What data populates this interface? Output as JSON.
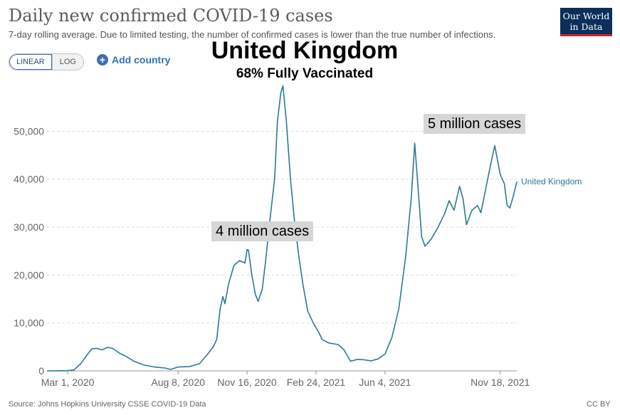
{
  "header": {
    "title": "Daily new confirmed COVID-19 cases",
    "subtitle": "7-day rolling average. Due to limited testing, the number of confirmed cases is lower than the true number of infections.",
    "logo_line1": "Our World",
    "logo_line2": "in Data"
  },
  "controls": {
    "linear_label": "LINEAR",
    "log_label": "LOG",
    "add_country_label": "Add country"
  },
  "overlay": {
    "country": "United Kingdom",
    "vaccinated": "68% Fully Vaccinated",
    "annotation_1": "4 million cases",
    "annotation_2": "5 million cases"
  },
  "footer": {
    "source": "Source: Johns Hopkins University CSSE COVID-19 Data",
    "license": "CC BY"
  },
  "colors": {
    "line": "#2a7a93",
    "grid": "#dddddd",
    "axis_text": "#666666"
  },
  "chart_data": {
    "type": "line",
    "title": "Daily new confirmed COVID-19 cases",
    "xlabel": "",
    "ylabel": "",
    "ylim": [
      0,
      60000
    ],
    "yticks": [
      0,
      10000,
      20000,
      30000,
      40000,
      50000
    ],
    "ytick_labels": [
      "0",
      "10,000",
      "20,000",
      "30,000",
      "40,000",
      "50,000"
    ],
    "xticks": [
      "2020-03-01",
      "2020-08-08",
      "2020-11-16",
      "2021-02-24",
      "2021-06-04",
      "2021-11-18"
    ],
    "xtick_labels": [
      "Mar 1, 2020",
      "Aug 8, 2020",
      "Nov 16, 2020",
      "Feb 24, 2021",
      "Jun 4, 2021",
      "Nov 18, 2021"
    ],
    "grid": "horizontal",
    "series": [
      {
        "name": "United Kingdom",
        "points": [
          [
            "2020-01-31",
            0
          ],
          [
            "2020-02-15",
            10
          ],
          [
            "2020-03-01",
            50
          ],
          [
            "2020-03-10",
            200
          ],
          [
            "2020-03-20",
            1500
          ],
          [
            "2020-03-30",
            3500
          ],
          [
            "2020-04-05",
            4600
          ],
          [
            "2020-04-12",
            4700
          ],
          [
            "2020-04-20",
            4400
          ],
          [
            "2020-04-28",
            4900
          ],
          [
            "2020-05-05",
            4700
          ],
          [
            "2020-05-15",
            3700
          ],
          [
            "2020-05-25",
            3000
          ],
          [
            "2020-06-05",
            2000
          ],
          [
            "2020-06-20",
            1200
          ],
          [
            "2020-07-05",
            800
          ],
          [
            "2020-07-20",
            600
          ],
          [
            "2020-07-28",
            300
          ],
          [
            "2020-08-08",
            800
          ],
          [
            "2020-08-25",
            900
          ],
          [
            "2020-09-08",
            1500
          ],
          [
            "2020-09-20",
            3500
          ],
          [
            "2020-09-28",
            5000
          ],
          [
            "2020-10-03",
            6500
          ],
          [
            "2020-10-08",
            13000
          ],
          [
            "2020-10-12",
            15500
          ],
          [
            "2020-10-15",
            14000
          ],
          [
            "2020-10-20",
            18000
          ],
          [
            "2020-10-28",
            22000
          ],
          [
            "2020-11-05",
            23000
          ],
          [
            "2020-11-13",
            22500
          ],
          [
            "2020-11-16",
            25300
          ],
          [
            "2020-11-18",
            25200
          ],
          [
            "2020-11-23",
            20000
          ],
          [
            "2020-11-28",
            16000
          ],
          [
            "2020-12-02",
            14500
          ],
          [
            "2020-12-08",
            17000
          ],
          [
            "2020-12-13",
            23000
          ],
          [
            "2020-12-18",
            30000
          ],
          [
            "2020-12-22",
            35000
          ],
          [
            "2020-12-26",
            40000
          ],
          [
            "2020-12-30",
            52000
          ],
          [
            "2021-01-04",
            58000
          ],
          [
            "2021-01-07",
            59500
          ],
          [
            "2021-01-12",
            52000
          ],
          [
            "2021-01-18",
            40000
          ],
          [
            "2021-01-24",
            31000
          ],
          [
            "2021-01-30",
            24000
          ],
          [
            "2021-02-05",
            18000
          ],
          [
            "2021-02-12",
            12500
          ],
          [
            "2021-02-20",
            10000
          ],
          [
            "2021-02-28",
            8000
          ],
          [
            "2021-03-05",
            6500
          ],
          [
            "2021-03-15",
            5800
          ],
          [
            "2021-03-28",
            5500
          ],
          [
            "2021-04-05",
            4500
          ],
          [
            "2021-04-12",
            2800
          ],
          [
            "2021-04-15",
            2000
          ],
          [
            "2021-04-25",
            2400
          ],
          [
            "2021-05-05",
            2300
          ],
          [
            "2021-05-15",
            2100
          ],
          [
            "2021-05-25",
            2500
          ],
          [
            "2021-06-04",
            3500
          ],
          [
            "2021-06-14",
            7000
          ],
          [
            "2021-06-24",
            13000
          ],
          [
            "2021-07-04",
            24000
          ],
          [
            "2021-07-12",
            36000
          ],
          [
            "2021-07-17",
            47500
          ],
          [
            "2021-07-22",
            38000
          ],
          [
            "2021-07-27",
            28000
          ],
          [
            "2021-08-01",
            26000
          ],
          [
            "2021-08-10",
            27500
          ],
          [
            "2021-08-20",
            30000
          ],
          [
            "2021-08-30",
            33000
          ],
          [
            "2021-09-05",
            35500
          ],
          [
            "2021-09-12",
            33500
          ],
          [
            "2021-09-20",
            38500
          ],
          [
            "2021-09-25",
            36000
          ],
          [
            "2021-09-30",
            30500
          ],
          [
            "2021-10-08",
            33500
          ],
          [
            "2021-10-16",
            34500
          ],
          [
            "2021-10-21",
            33000
          ],
          [
            "2021-10-28",
            38000
          ],
          [
            "2021-11-04",
            43000
          ],
          [
            "2021-11-10",
            47000
          ],
          [
            "2021-11-14",
            44000
          ],
          [
            "2021-11-18",
            41000
          ],
          [
            "2021-11-24",
            39000
          ],
          [
            "2021-11-28",
            34500
          ],
          [
            "2021-12-02",
            34000
          ],
          [
            "2021-12-07",
            36500
          ],
          [
            "2021-12-12",
            39500
          ]
        ]
      }
    ]
  }
}
